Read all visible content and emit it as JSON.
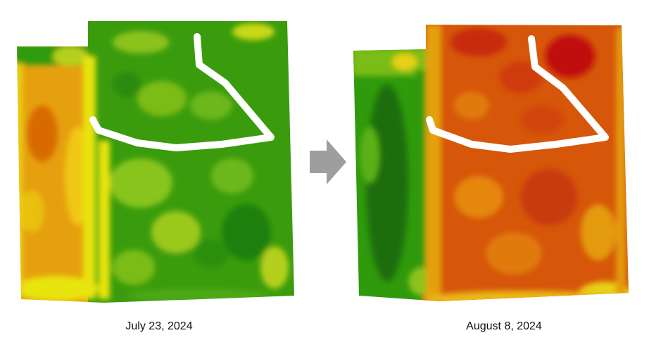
{
  "captions": {
    "left": "July 23, 2024",
    "right": "August 8, 2024"
  },
  "colors": {
    "dark_green": "#1f7a0a",
    "green": "#2f9a0c",
    "light_green": "#6cb81a",
    "yellow_green": "#b5d01a",
    "yellow": "#e8e410",
    "orange": "#e39a10",
    "dark_orange": "#d86a05",
    "red_orange": "#d2450a",
    "red": "#c01010",
    "arrow_gray": "#9e9e9e"
  },
  "icons": {
    "transition": "right-arrow-icon"
  }
}
